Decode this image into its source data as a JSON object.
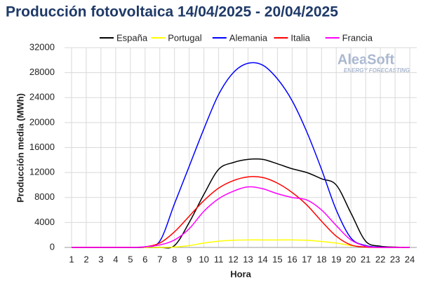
{
  "chart_data": {
    "type": "line",
    "title": "Producción fotovoltaica 14/04/2025 - 20/04/2025",
    "y_label": "Producción media (MWh)",
    "x_label": "Hora",
    "watermark": "AleaSoft",
    "watermark_sub": "ENERGY FORECASTING",
    "x": [
      1,
      2,
      3,
      4,
      5,
      6,
      7,
      8,
      9,
      10,
      11,
      12,
      13,
      14,
      15,
      16,
      17,
      18,
      19,
      20,
      21,
      22,
      23,
      24
    ],
    "xlim": [
      1,
      24
    ],
    "xticks": [
      1,
      2,
      3,
      4,
      5,
      6,
      7,
      8,
      9,
      10,
      11,
      12,
      13,
      14,
      15,
      16,
      17,
      18,
      19,
      20,
      21,
      22,
      23,
      24
    ],
    "ylim": [
      0,
      32000
    ],
    "yticks": [
      0,
      4000,
      8000,
      12000,
      16000,
      20000,
      24000,
      28000,
      32000
    ],
    "grid": true,
    "legend": "top",
    "series": [
      {
        "name": "España",
        "color": "#000000",
        "values": [
          0,
          0,
          0,
          0,
          0,
          0,
          0,
          300,
          4000,
          8500,
          12500,
          13600,
          14100,
          14100,
          13400,
          12600,
          12000,
          11000,
          10000,
          5500,
          1000,
          200,
          50,
          0
        ]
      },
      {
        "name": "Portugal",
        "color": "#ffff00",
        "values": [
          0,
          0,
          0,
          0,
          0,
          0,
          0,
          50,
          300,
          700,
          1000,
          1150,
          1200,
          1200,
          1200,
          1200,
          1150,
          950,
          700,
          300,
          50,
          0,
          0,
          0
        ]
      },
      {
        "name": "Alemania",
        "color": "#0000ff",
        "values": [
          0,
          0,
          0,
          0,
          0,
          100,
          1000,
          7000,
          13000,
          19000,
          24500,
          28000,
          29500,
          29200,
          27000,
          23500,
          18500,
          12500,
          6000,
          1500,
          300,
          50,
          0,
          0
        ]
      },
      {
        "name": "Italia",
        "color": "#ff0000",
        "values": [
          0,
          0,
          0,
          0,
          0,
          100,
          700,
          2500,
          5000,
          7500,
          9500,
          10700,
          11300,
          11200,
          10300,
          8800,
          6800,
          4200,
          1800,
          400,
          50,
          0,
          0,
          0
        ]
      },
      {
        "name": "Francia",
        "color": "#ff00ff",
        "values": [
          0,
          0,
          0,
          0,
          0,
          100,
          400,
          1200,
          3000,
          5800,
          7800,
          9000,
          9700,
          9400,
          8600,
          8000,
          7600,
          6000,
          3500,
          1200,
          200,
          0,
          0,
          0
        ]
      }
    ]
  }
}
